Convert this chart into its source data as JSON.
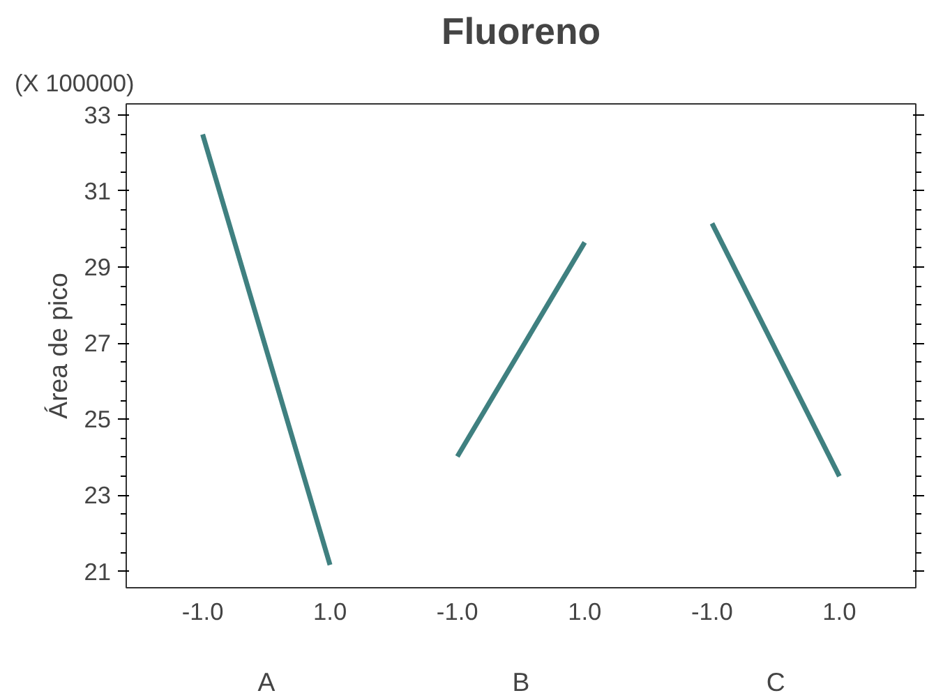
{
  "chart_data": {
    "type": "line",
    "title": "Fluoreno",
    "ylabel": "Área de pico",
    "categories": [
      "-1.0",
      "1.0",
      "-1.0",
      "1.0",
      "-1.0",
      "1.0"
    ],
    "series": [
      {
        "color": "#3f8080",
        "values": [
          32.49,
          21.17,
          null,
          null,
          null,
          null
        ]
      },
      {
        "color": "#3f8080",
        "values": [
          null,
          null,
          24.02,
          29.65,
          null,
          null
        ]
      },
      {
        "color": "#3f8080",
        "values": [
          null,
          null,
          null,
          null,
          30.15,
          23.5
        ]
      }
    ],
    "ylim": [
      20.57,
      33.29
    ],
    "yticks": [
      21,
      23,
      25,
      27,
      29,
      31,
      33
    ],
    "annotations": [
      "(X 100000)",
      "A",
      "B",
      "C"
    ],
    "grid": false,
    "marker": "none",
    "line_style": "solid"
  }
}
